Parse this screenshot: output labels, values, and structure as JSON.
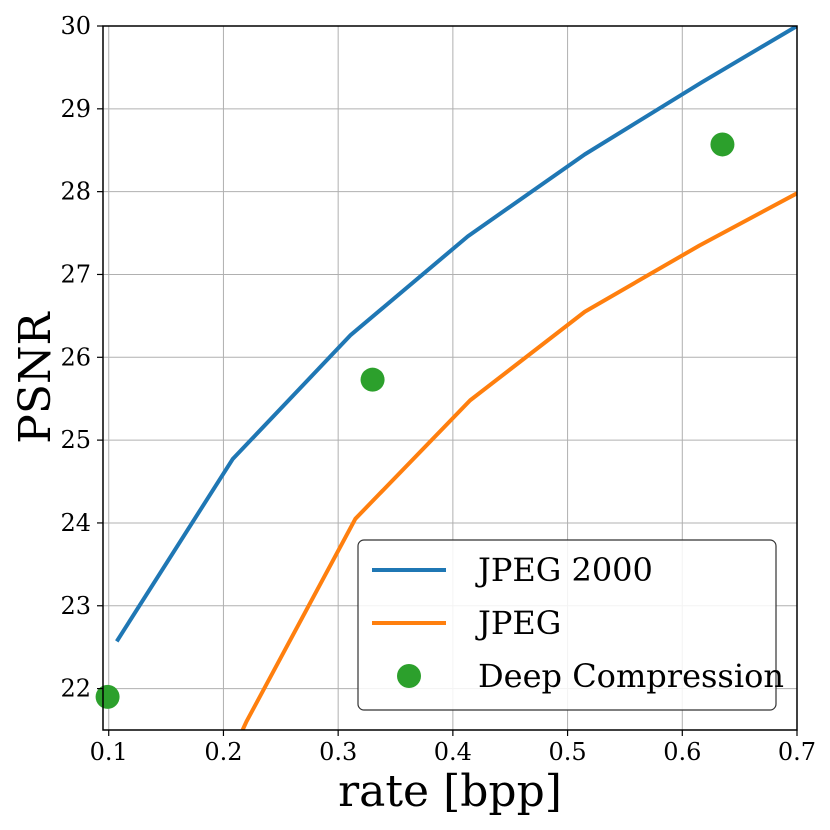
{
  "chart_data": {
    "type": "line",
    "title": "",
    "xlabel": "rate [bpp]",
    "ylabel": "PSNR",
    "xlim": [
      0.095,
      0.7
    ],
    "ylim": [
      21.5,
      30
    ],
    "grid": true,
    "x_ticks": [
      0.1,
      0.2,
      0.3,
      0.4,
      0.5,
      0.6,
      0.7
    ],
    "x_tick_labels": [
      "0.1",
      "0.2",
      "0.3",
      "0.4",
      "0.5",
      "0.6",
      "0.7"
    ],
    "y_ticks": [
      22,
      23,
      24,
      25,
      26,
      27,
      28,
      29,
      30
    ],
    "y_tick_labels": [
      "22",
      "23",
      "24",
      "25",
      "26",
      "27",
      "28",
      "29",
      "30"
    ],
    "legend_position": "lower-right",
    "series": [
      {
        "name": "JPEG 2000",
        "kind": "line",
        "color": "#1f77b4",
        "x": [
          0.107,
          0.208,
          0.311,
          0.413,
          0.515,
          0.617,
          0.7
        ],
        "y": [
          22.57,
          24.77,
          26.27,
          27.46,
          28.45,
          29.32,
          30.0
        ]
      },
      {
        "name": "JPEG",
        "kind": "line",
        "color": "#ff7f0e",
        "x": [
          0.2167,
          0.22,
          0.315,
          0.415,
          0.515,
          0.615,
          0.7
        ],
        "y": [
          21.5,
          21.6,
          24.05,
          25.48,
          26.55,
          27.35,
          27.98
        ]
      },
      {
        "name": "Deep Compression",
        "kind": "scatter",
        "color": "#2ca02c",
        "x": [
          0.099,
          0.33,
          0.635
        ],
        "y": [
          21.9,
          25.73,
          28.57
        ]
      }
    ]
  }
}
